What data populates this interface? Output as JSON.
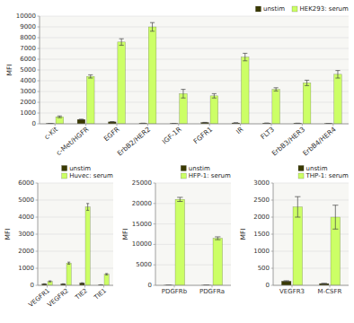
{
  "chart_data": [
    {
      "type": "bar",
      "ylabel": "MFI",
      "categories": [
        "c-Kit",
        "c-Met/HGFR",
        "EGFR",
        "ErbB2/HER2",
        "IGF-1R",
        "FGFR1",
        "IR",
        "FLT3",
        "ErbB3/HER3",
        "ErbB4/HER4"
      ],
      "series": [
        {
          "name": "unstim",
          "color": "#3a3a00",
          "values": [
            30,
            400,
            180,
            50,
            30,
            120,
            80,
            60,
            50,
            30
          ],
          "errors": [
            10,
            30,
            20,
            10,
            10,
            15,
            10,
            10,
            10,
            10
          ]
        },
        {
          "name": "HEK293: serum",
          "color": "#ccff66",
          "values": [
            650,
            4400,
            7600,
            9000,
            2800,
            2600,
            6200,
            3200,
            3800,
            4600
          ],
          "errors": [
            80,
            150,
            300,
            400,
            400,
            200,
            350,
            150,
            250,
            350
          ]
        }
      ],
      "ylim": [
        0,
        10000
      ],
      "yticks": [
        0,
        1000,
        2000,
        3000,
        4000,
        5000,
        6000,
        7000,
        8000,
        9000,
        10000
      ],
      "grid": true,
      "legend": "upper right"
    },
    {
      "type": "bar",
      "ylabel": "MFI",
      "categories": [
        "VEGFR1",
        "VEGFR2",
        "TIE2",
        "TIE1"
      ],
      "series": [
        {
          "name": "unstim",
          "color": "#3a3a00",
          "values": [
            80,
            80,
            130,
            30
          ],
          "errors": [
            10,
            10,
            20,
            5
          ]
        },
        {
          "name": "Huvec: serum",
          "color": "#ccff66",
          "values": [
            230,
            1300,
            4600,
            650
          ],
          "errors": [
            30,
            60,
            200,
            40
          ]
        }
      ],
      "ylim": [
        0,
        6000
      ],
      "yticks": [
        0,
        1000,
        2000,
        3000,
        4000,
        5000,
        6000
      ],
      "grid": true,
      "legend": "upper right"
    },
    {
      "type": "bar",
      "ylabel": "MFI",
      "categories": [
        "PDGFRb",
        "PDGFRa"
      ],
      "series": [
        {
          "name": "unstim",
          "color": "#3a3a00",
          "values": [
            30,
            30
          ],
          "errors": [
            5,
            5
          ]
        },
        {
          "name": "HFP-1: serum",
          "color": "#ccff66",
          "values": [
            21000,
            11500
          ],
          "errors": [
            500,
            350
          ]
        }
      ],
      "ylim": [
        0,
        25000
      ],
      "yticks": [
        0,
        5000,
        10000,
        15000,
        20000,
        25000
      ],
      "grid": true,
      "legend": "upper right"
    },
    {
      "type": "bar",
      "ylabel": "MFI",
      "categories": [
        "VEGFR3",
        "M-CSFR"
      ],
      "series": [
        {
          "name": "unstim",
          "color": "#3a3a00",
          "values": [
            120,
            50
          ],
          "errors": [
            15,
            10
          ]
        },
        {
          "name": "THP-1: serum",
          "color": "#ccff66",
          "values": [
            2300,
            2000
          ],
          "errors": [
            300,
            350
          ]
        }
      ],
      "ylim": [
        0,
        3000
      ],
      "yticks": [
        0,
        500,
        1000,
        1500,
        2000,
        2500,
        3000
      ],
      "grid": true,
      "legend": "upper right"
    }
  ]
}
